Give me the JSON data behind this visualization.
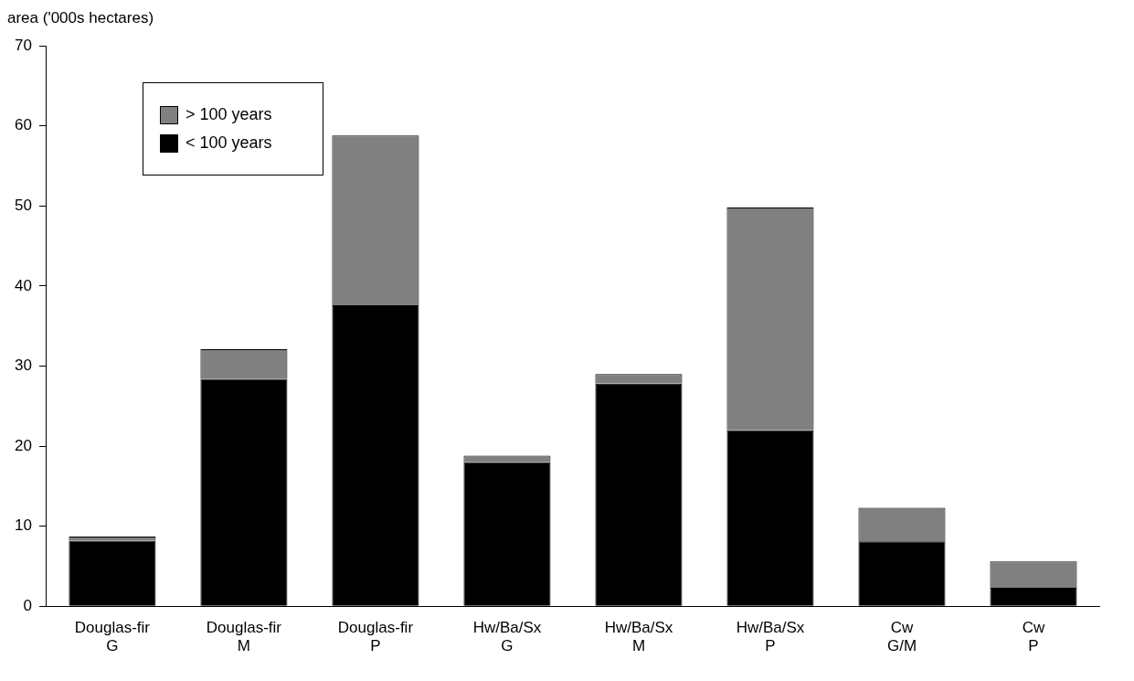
{
  "chart_data": {
    "type": "bar",
    "stacked": true,
    "ylabel": "area ('000s hectares)",
    "categories": [
      "Douglas-fir\nG",
      "Douglas-fir\nM",
      "Douglas-fir\nP",
      "Hw/Ba/Sx\nG",
      "Hw/Ba/Sx\nM",
      "Hw/Ba/Sx\nP",
      "Cw\nG/M",
      "Cw\nP"
    ],
    "series": [
      {
        "name": "< 100 years",
        "color": "#000000",
        "values": [
          8.2,
          28.4,
          37.6,
          18.0,
          27.8,
          22.0,
          8.1,
          2.3
        ]
      },
      {
        "name": "> 100 years",
        "color": "#808080",
        "values": [
          0.5,
          3.7,
          21.2,
          0.8,
          1.2,
          27.8,
          4.2,
          3.3
        ]
      }
    ],
    "ylim": [
      0,
      70
    ],
    "yticks": [
      0,
      10,
      20,
      30,
      40,
      50,
      60,
      70
    ],
    "grid": false,
    "legend": "top left"
  }
}
